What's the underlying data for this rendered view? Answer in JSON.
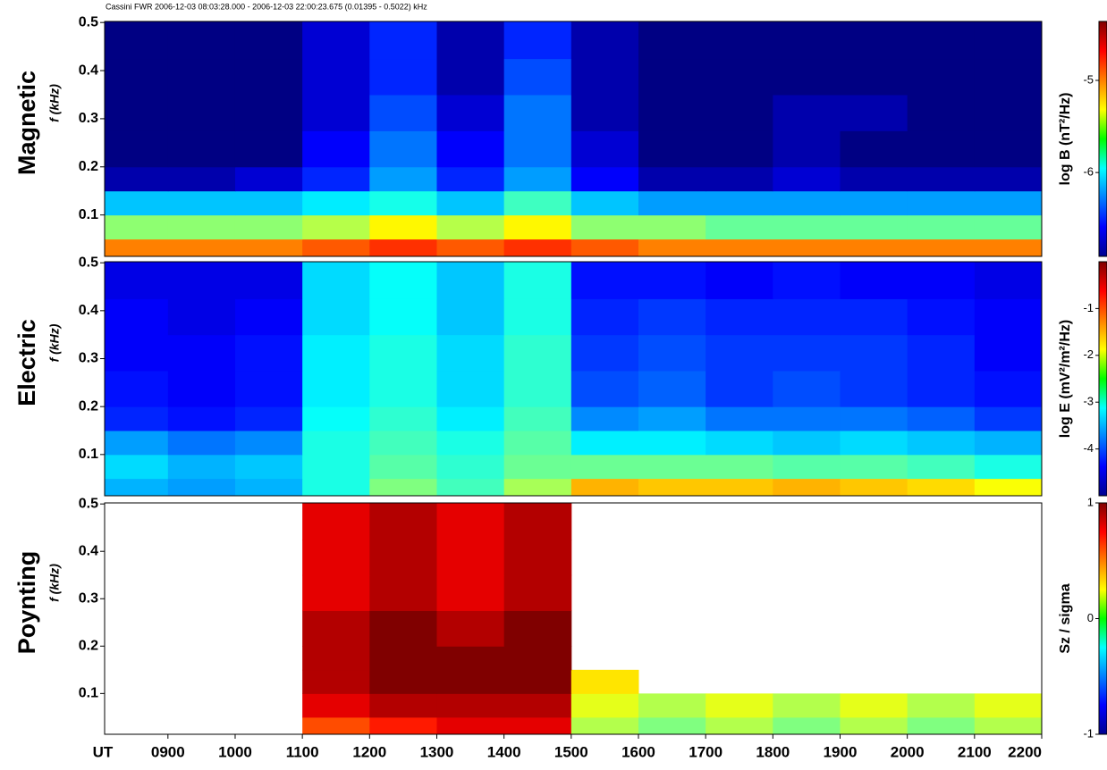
{
  "chart_data": [
    {
      "type": "heatmap",
      "title": "Cassini FWR 2006-12-03 08:03:28.000 - 2006-12-03 22:00:23.675  (0.01395 - 0.5022) kHz",
      "name": "Magnetic",
      "y_label": "f (kHz)",
      "colorbar_label": "log B (nT²/Hz)",
      "xlim": [
        8.058,
        22.0
      ],
      "ylim": [
        0.01395,
        0.5022
      ],
      "yticks": [
        0.1,
        0.2,
        0.3,
        0.4,
        0.5
      ],
      "zlim": [
        -6.91,
        -4.36
      ],
      "zticks": [
        -5,
        -6
      ],
      "x_bins": [
        8.058,
        9,
        10,
        11,
        12,
        13,
        14,
        15,
        16,
        17,
        18,
        19,
        20,
        21,
        22.0
      ],
      "y_bins": [
        0.01395,
        0.05,
        0.1,
        0.15,
        0.2,
        0.275,
        0.35,
        0.425,
        0.5022
      ],
      "z": [
        [
          -5.0,
          -5.0,
          -5.0,
          -4.9,
          -4.8,
          -4.9,
          -4.8,
          -4.9,
          -5.0,
          -5.0,
          -5.0,
          -5.0,
          -5.0,
          -5.0
        ],
        [
          -5.6,
          -5.6,
          -5.6,
          -5.5,
          -5.3,
          -5.5,
          -5.3,
          -5.6,
          -5.6,
          -5.7,
          -5.7,
          -5.7,
          -5.7,
          -5.7
        ],
        [
          -6.1,
          -6.1,
          -6.1,
          -6.0,
          -5.9,
          -6.1,
          -5.8,
          -6.1,
          -6.2,
          -6.2,
          -6.2,
          -6.2,
          -6.2,
          -6.2
        ],
        [
          -6.8,
          -6.8,
          -6.7,
          -6.5,
          -6.2,
          -6.5,
          -6.2,
          -6.6,
          -6.8,
          -6.8,
          -6.7,
          -6.8,
          -6.8,
          -6.8
        ],
        [
          -6.9,
          -6.9,
          -6.9,
          -6.6,
          -6.3,
          -6.6,
          -6.3,
          -6.7,
          -6.9,
          -6.9,
          -6.8,
          -6.9,
          -6.9,
          -6.9
        ],
        [
          -6.9,
          -6.9,
          -6.9,
          -6.7,
          -6.4,
          -6.7,
          -6.3,
          -6.8,
          -6.9,
          -6.9,
          -6.8,
          -6.8,
          -6.9,
          -6.9
        ],
        [
          -6.9,
          -6.9,
          -6.9,
          -6.7,
          -6.5,
          -6.8,
          -6.4,
          -6.8,
          -6.9,
          -6.9,
          -6.9,
          -6.9,
          -6.9,
          -6.9
        ],
        [
          -6.9,
          -6.9,
          -6.9,
          -6.7,
          -6.5,
          -6.8,
          -6.5,
          -6.8,
          -6.9,
          -6.9,
          -6.9,
          -6.9,
          -6.9,
          -6.9
        ]
      ]
    },
    {
      "type": "heatmap",
      "name": "Electric",
      "y_label": "f (kHz)",
      "colorbar_label": "log E (mV²/m²/Hz)",
      "xlim": [
        8.058,
        22.0
      ],
      "ylim": [
        0.01395,
        0.5022
      ],
      "yticks": [
        0.1,
        0.2,
        0.3,
        0.4,
        0.5
      ],
      "zlim": [
        -5,
        0
      ],
      "zticks": [
        -1,
        -2,
        -3,
        -4
      ],
      "x_bins": [
        8.058,
        9,
        10,
        11,
        12,
        13,
        14,
        15,
        16,
        17,
        18,
        19,
        20,
        21,
        22.0
      ],
      "y_bins": [
        0.01395,
        0.05,
        0.1,
        0.15,
        0.2,
        0.275,
        0.35,
        0.425,
        0.5022
      ],
      "z": [
        [
          -3.5,
          -3.6,
          -3.5,
          -3.0,
          -2.5,
          -2.8,
          -2.3,
          -1.5,
          -1.6,
          -1.6,
          -1.5,
          -1.6,
          -1.7,
          -1.9
        ],
        [
          -3.3,
          -3.5,
          -3.4,
          -3.0,
          -2.7,
          -2.9,
          -2.6,
          -2.6,
          -2.6,
          -2.6,
          -2.7,
          -2.7,
          -2.8,
          -3.0
        ],
        [
          -3.6,
          -3.8,
          -3.7,
          -3.0,
          -2.8,
          -3.0,
          -2.7,
          -3.2,
          -3.2,
          -3.3,
          -3.4,
          -3.3,
          -3.4,
          -3.5
        ],
        [
          -4.2,
          -4.3,
          -4.2,
          -3.1,
          -2.9,
          -3.2,
          -2.8,
          -3.7,
          -3.6,
          -3.8,
          -3.8,
          -3.8,
          -3.9,
          -4.1
        ],
        [
          -4.3,
          -4.4,
          -4.3,
          -3.2,
          -3.0,
          -3.3,
          -2.9,
          -4.0,
          -3.9,
          -4.1,
          -4.0,
          -4.1,
          -4.2,
          -4.3
        ],
        [
          -4.4,
          -4.4,
          -4.3,
          -3.2,
          -3.0,
          -3.3,
          -2.9,
          -4.1,
          -4.0,
          -4.1,
          -4.1,
          -4.1,
          -4.2,
          -4.4
        ],
        [
          -4.4,
          -4.5,
          -4.4,
          -3.3,
          -3.1,
          -3.4,
          -3.0,
          -4.2,
          -4.1,
          -4.2,
          -4.2,
          -4.2,
          -4.3,
          -4.4
        ],
        [
          -4.5,
          -4.5,
          -4.5,
          -3.3,
          -3.1,
          -3.4,
          -3.0,
          -4.3,
          -4.3,
          -4.4,
          -4.3,
          -4.4,
          -4.4,
          -4.5
        ]
      ]
    },
    {
      "type": "heatmap",
      "name": "Poynting",
      "y_label": "f (kHz)",
      "colorbar_label": "Sz / sigma",
      "xlim": [
        8.058,
        22.0
      ],
      "ylim": [
        0.01395,
        0.5022
      ],
      "yticks": [
        0.1,
        0.2,
        0.3,
        0.4,
        0.5
      ],
      "zlim": [
        -1,
        1
      ],
      "zticks": [
        1,
        0,
        -1
      ],
      "x_label": "UT",
      "xticks": [
        {
          "value": 9,
          "label": "0900"
        },
        {
          "value": 10,
          "label": "1000"
        },
        {
          "value": 11,
          "label": "1100"
        },
        {
          "value": 12,
          "label": "1200"
        },
        {
          "value": 13,
          "label": "1300"
        },
        {
          "value": 14,
          "label": "1400"
        },
        {
          "value": 15,
          "label": "1500"
        },
        {
          "value": 16,
          "label": "1600"
        },
        {
          "value": 17,
          "label": "1700"
        },
        {
          "value": 18,
          "label": "1800"
        },
        {
          "value": 19,
          "label": "1900"
        },
        {
          "value": 20,
          "label": "2000"
        },
        {
          "value": 21,
          "label": "2100"
        },
        {
          "value": 22,
          "label": "2200"
        }
      ],
      "x_bins": [
        8.058,
        9,
        10,
        11,
        12,
        13,
        14,
        15,
        16,
        17,
        18,
        19,
        20,
        21,
        22.0
      ],
      "y_bins": [
        0.01395,
        0.05,
        0.1,
        0.15,
        0.2,
        0.275,
        0.35,
        0.425,
        0.5022
      ],
      "z": [
        [
          null,
          null,
          null,
          0.6,
          0.7,
          0.8,
          0.8,
          0.1,
          0.0,
          0.1,
          0.0,
          0.1,
          0.0,
          0.1
        ],
        [
          null,
          null,
          null,
          0.8,
          0.9,
          0.9,
          0.9,
          0.2,
          0.1,
          0.2,
          0.1,
          0.2,
          0.1,
          0.2
        ],
        [
          null,
          null,
          null,
          0.9,
          1,
          1,
          1,
          0.3,
          null,
          null,
          null,
          null,
          null,
          null
        ],
        [
          null,
          null,
          null,
          0.9,
          1,
          1,
          1,
          null,
          null,
          null,
          null,
          null,
          null,
          null
        ],
        [
          null,
          null,
          null,
          0.9,
          1,
          0.9,
          1,
          null,
          null,
          null,
          null,
          null,
          null,
          null
        ],
        [
          null,
          null,
          null,
          0.8,
          0.9,
          0.8,
          0.9,
          null,
          null,
          null,
          null,
          null,
          null,
          null
        ],
        [
          null,
          null,
          null,
          0.8,
          0.9,
          0.8,
          0.9,
          null,
          null,
          null,
          null,
          null,
          null,
          null
        ],
        [
          null,
          null,
          null,
          0.8,
          0.9,
          0.8,
          0.9,
          null,
          null,
          null,
          null,
          null,
          null,
          null
        ]
      ]
    }
  ]
}
